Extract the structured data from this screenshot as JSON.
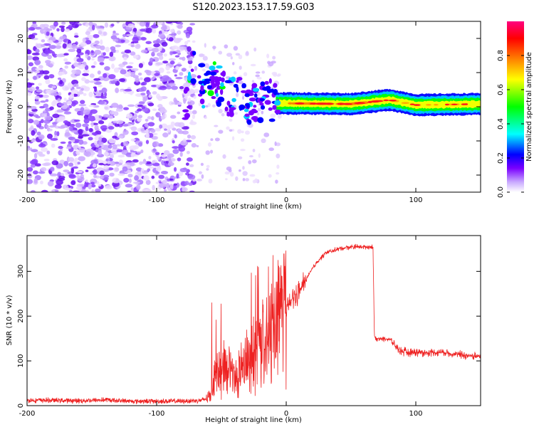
{
  "title": "S120.2023.153.17.59.G03",
  "chart_data": [
    {
      "type": "heatmap",
      "xlabel": "Height of straight line (km)",
      "ylabel": "Frequency (Hz)",
      "xlim": [
        -200,
        150
      ],
      "ylim": [
        -25,
        25
      ],
      "x_ticks": [
        -200,
        -100,
        0,
        100
      ],
      "y_ticks": [
        -20,
        -10,
        0,
        10,
        20
      ],
      "colorbar": {
        "label": "Normalized spectral amplitude",
        "range": [
          0,
          1
        ],
        "ticks": [
          0.0,
          0.2,
          0.4,
          0.6,
          0.8
        ],
        "colormap": [
          "#ffffff",
          "#c8a8ff",
          "#7a00ff",
          "#0000ff",
          "#00ffff",
          "#00ff00",
          "#ffff00",
          "#ff8000",
          "#ff0000",
          "#ff0080"
        ]
      },
      "features": {
        "noise_region_x": [
          -200,
          -75
        ],
        "signal_band_center": [
          {
            "x": -75,
            "f": 12
          },
          {
            "x": -70,
            "f": 10
          },
          {
            "x": -65,
            "f": 6
          },
          {
            "x": -60,
            "f": 4
          },
          {
            "x": -55,
            "f": 8
          },
          {
            "x": -50,
            "f": 6
          },
          {
            "x": -45,
            "f": 3
          },
          {
            "x": -40,
            "f": 4
          },
          {
            "x": -35,
            "f": 2
          },
          {
            "x": -30,
            "f": 0
          },
          {
            "x": -25,
            "f": 1
          },
          {
            "x": -20,
            "f": -1
          },
          {
            "x": -15,
            "f": 4
          },
          {
            "x": -10,
            "f": 1
          },
          {
            "x": 0,
            "f": 1
          },
          {
            "x": 50,
            "f": 0.8
          },
          {
            "x": 80,
            "f": 2
          },
          {
            "x": 100,
            "f": 0.5
          },
          {
            "x": 150,
            "f": 0.8
          }
        ],
        "strong_peak_x": [
          0,
          70
        ]
      }
    },
    {
      "type": "line",
      "xlabel": "Height of straight line (km)",
      "ylabel": "SNR (10 * v/v)",
      "xlim": [
        -200,
        150
      ],
      "ylim": [
        0,
        380
      ],
      "x_ticks": [
        -200,
        -100,
        0,
        100
      ],
      "y_ticks": [
        0,
        100,
        200,
        300
      ],
      "series": [
        {
          "color": "#ee2222",
          "x": [
            -200,
            -180,
            -160,
            -140,
            -120,
            -100,
            -80,
            -65,
            -60,
            -57,
            -55,
            -50,
            -45,
            -40,
            -35,
            -30,
            -25,
            -20,
            -15,
            -10,
            -5,
            0,
            5,
            10,
            15,
            20,
            25,
            30,
            40,
            50,
            60,
            67,
            68,
            70,
            75,
            80,
            85,
            90,
            100,
            110,
            120,
            130,
            140,
            150
          ],
          "y": [
            12,
            12,
            11,
            13,
            10,
            10,
            10,
            12,
            18,
            35,
            70,
            80,
            85,
            60,
            80,
            90,
            110,
            150,
            130,
            170,
            210,
            220,
            240,
            255,
            280,
            305,
            325,
            340,
            350,
            355,
            355,
            355,
            155,
            150,
            150,
            148,
            130,
            120,
            120,
            118,
            120,
            115,
            112,
            110
          ]
        }
      ]
    }
  ]
}
